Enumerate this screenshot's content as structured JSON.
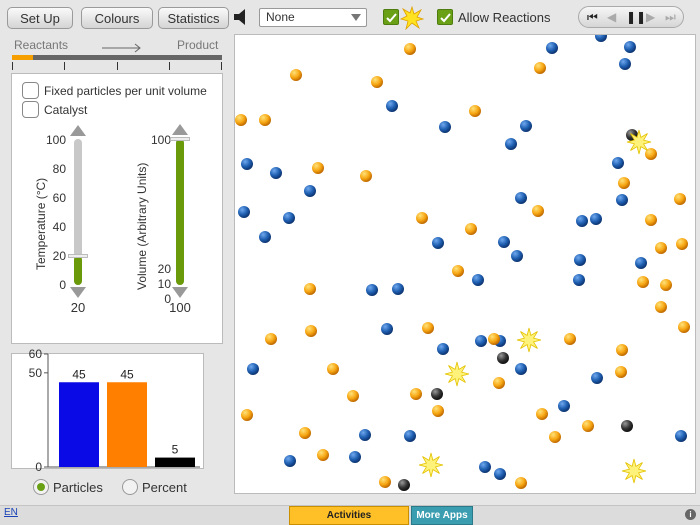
{
  "toolbar": {
    "setup_label": "Set Up",
    "colours_label": "Colours",
    "statistics_label": "Statistics",
    "dropdown_value": "None",
    "allow_reactions_label": "Allow Reactions",
    "reactions_checked": true,
    "allow_reactions_checked": true
  },
  "progress": {
    "reactants_label": "Reactants",
    "product_label": "Product",
    "fraction": 0.1
  },
  "options": {
    "fixed_particles_label": "Fixed particles per unit volume",
    "catalyst_label": "Catalyst",
    "fixed_particles_checked": false,
    "catalyst_checked": false
  },
  "temperature": {
    "title": "Temperature (°C)",
    "ticks": [
      "100",
      "80",
      "60",
      "40",
      "20",
      "0"
    ],
    "value": "20",
    "fraction": 0.2
  },
  "volume": {
    "title": "Volume (Arbitrary Units)",
    "ticks": [
      "100",
      "20",
      "10",
      "0"
    ],
    "value": "100",
    "fraction": 1.0
  },
  "chart_data": {
    "type": "bar",
    "categories": [
      "blue",
      "orange",
      "black"
    ],
    "values": [
      45,
      45,
      5
    ],
    "value_labels": [
      "45",
      "45",
      "5"
    ],
    "colors": [
      "#0a0ae6",
      "#ff7f00",
      "#000000"
    ],
    "ylim": [
      0,
      60
    ],
    "yticks": [
      "60",
      "50",
      "0"
    ]
  },
  "chart_mode": {
    "particles_label": "Particles",
    "percent_label": "Percent",
    "selected": "particles"
  },
  "footer": {
    "language": "EN",
    "activities_label": "Activities",
    "more_apps_label": "More Apps",
    "info_label": "i"
  },
  "colors": {
    "accent_green": "#6aa016",
    "blue_particle": "#1e5eb0",
    "orange_particle": "#f7a612",
    "black_particle": "#333333"
  }
}
